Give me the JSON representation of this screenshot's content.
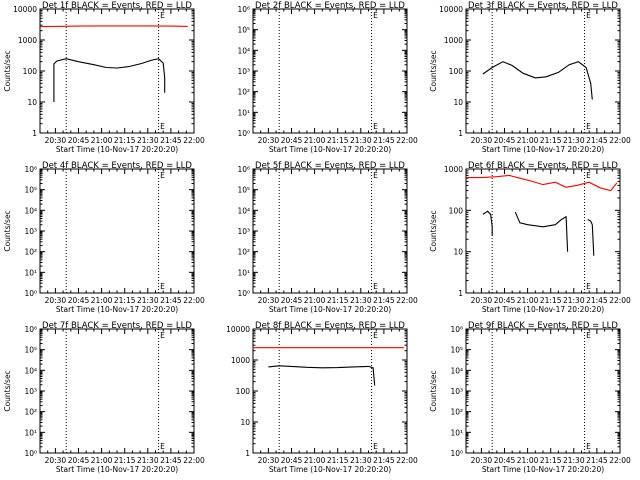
{
  "chart_data": [
    {
      "type": "line",
      "title": "Det 1f BLACK = Events, RED = LLD",
      "xlabel": "Start Time (10-Nov-17 20:20:20)",
      "ylabel": "Counts/sec",
      "yscale": "log",
      "ylim": [
        1,
        10000
      ],
      "ytick_labels": [
        "1",
        "10",
        "100",
        "1000",
        "10000"
      ],
      "xtick_labels": [
        "20:30",
        "20:45",
        "21:00",
        "21:15",
        "21:30",
        "21:45",
        "22:00"
      ],
      "vlines": [
        "20:37",
        "21:37"
      ],
      "marker": "E",
      "marker_time": "21:38",
      "series": [
        {
          "color": "#ff0000",
          "x": [
            "20:20",
            "20:30",
            "20:45",
            "21:00",
            "21:15",
            "21:30",
            "21:45",
            "21:56"
          ],
          "y": [
            2700,
            2750,
            2800,
            2850,
            2850,
            2850,
            2800,
            2750
          ]
        },
        {
          "color": "#000000",
          "x": [
            "20:29",
            "20:29",
            "20:31",
            "20:37",
            "20:45",
            "20:55",
            "21:03",
            "21:10",
            "21:18",
            "21:26",
            "21:32",
            "21:37",
            "21:40",
            "21:41",
            "21:41"
          ],
          "y": [
            10,
            170,
            210,
            250,
            200,
            160,
            130,
            125,
            140,
            175,
            220,
            250,
            180,
            60,
            20
          ]
        }
      ]
    },
    {
      "type": "line",
      "title": "Det 2f BLACK = Events, RED = LLD",
      "xlabel": "Start Time (10-Nov-17 20:20:20)",
      "ylabel": "",
      "yscale": "log",
      "ylim": [
        1,
        1000000
      ],
      "ytick_labels": [
        "10⁰",
        "10¹",
        "10²",
        "10³",
        "10⁴",
        "10⁵",
        "10⁶"
      ],
      "xtick_labels": [
        "20:30",
        "20:45",
        "21:00",
        "21:15",
        "21:30",
        "21:45",
        "22:00"
      ],
      "vlines": [
        "20:37",
        "21:37"
      ],
      "marker": "E",
      "marker_time": "21:38",
      "series": []
    },
    {
      "type": "line",
      "title": "Det 3f BLACK = Events, RED = LLD",
      "xlabel": "Start Time (10-Nov-17 20:20:20)",
      "ylabel": "Counts/sec",
      "yscale": "log",
      "ylim": [
        1,
        10000
      ],
      "ytick_labels": [
        "1",
        "10",
        "100",
        "1000",
        "10000"
      ],
      "xtick_labels": [
        "20:30",
        "20:45",
        "21:00",
        "21:15",
        "21:30",
        "21:45",
        "22:00"
      ],
      "vlines": [
        "20:37",
        "21:37"
      ],
      "marker": "E",
      "marker_time": "21:38",
      "series": [
        {
          "color": "#000000",
          "x": [
            "20:31",
            "20:37",
            "20:44",
            "20:50",
            "20:57",
            "21:05",
            "21:12",
            "21:20",
            "21:27",
            "21:33",
            "21:38",
            "21:41",
            "21:42"
          ],
          "y": [
            80,
            130,
            200,
            150,
            85,
            60,
            65,
            90,
            160,
            200,
            130,
            40,
            12
          ]
        }
      ]
    },
    {
      "type": "line",
      "title": "Det 4f BLACK = Events, RED = LLD",
      "xlabel": "Start Time (10-Nov-17 20:20:20)",
      "ylabel": "Counts/sec",
      "yscale": "log",
      "ylim": [
        1,
        1000000
      ],
      "ytick_labels": [
        "10⁰",
        "10¹",
        "10²",
        "10³",
        "10⁴",
        "10⁵",
        "10⁶"
      ],
      "xtick_labels": [
        "20:30",
        "20:45",
        "21:00",
        "21:15",
        "21:30",
        "21:45",
        "22:00"
      ],
      "vlines": [
        "20:37",
        "21:37"
      ],
      "marker": "E",
      "marker_time": "21:38",
      "series": []
    },
    {
      "type": "line",
      "title": "Det 5f BLACK = Events, RED = LLD",
      "xlabel": "Start Time (10-Nov-17 20:20:20)",
      "ylabel": "",
      "yscale": "log",
      "ylim": [
        1,
        1000000
      ],
      "ytick_labels": [
        "10⁰",
        "10¹",
        "10²",
        "10³",
        "10⁴",
        "10⁵",
        "10⁶"
      ],
      "xtick_labels": [
        "20:30",
        "20:45",
        "21:00",
        "21:15",
        "21:30",
        "21:45",
        "22:00"
      ],
      "vlines": [
        "20:37",
        "21:37"
      ],
      "marker": "E",
      "marker_time": "21:38",
      "series": []
    },
    {
      "type": "line",
      "title": "Det 6f BLACK = Events, RED = LLD",
      "xlabel": "Start Time (10-Nov-17 20:20:20)",
      "ylabel": "Counts/sec",
      "yscale": "log",
      "ylim": [
        1,
        1000
      ],
      "ytick_labels": [
        "1",
        "10",
        "100",
        "1000"
      ],
      "xtick_labels": [
        "20:30",
        "20:45",
        "21:00",
        "21:15",
        "21:30",
        "21:45",
        "22:00"
      ],
      "vlines": [
        "20:37",
        "21:37"
      ],
      "marker": "E",
      "marker_time": "21:38",
      "series": [
        {
          "color": "#ff0000",
          "x": [
            "20:20",
            "20:30",
            "20:40",
            "20:48",
            "20:55",
            "21:03",
            "21:10",
            "21:18",
            "21:25",
            "21:32",
            "21:40",
            "21:47",
            "21:54",
            "21:58"
          ],
          "y": [
            620,
            620,
            650,
            700,
            600,
            500,
            420,
            480,
            360,
            400,
            480,
            350,
            300,
            460
          ]
        },
        {
          "color": "#000000",
          "x": [
            "20:31",
            "20:34",
            "20:36",
            "20:37",
            "20:37"
          ],
          "y": [
            80,
            95,
            80,
            40,
            25
          ]
        },
        {
          "color": "#000000",
          "x": [
            "20:52",
            "20:55",
            "21:00",
            "21:10",
            "21:18",
            "21:22",
            "21:25",
            "21:26"
          ],
          "y": [
            90,
            50,
            45,
            40,
            45,
            60,
            70,
            10
          ]
        },
        {
          "color": "#000000",
          "x": [
            "21:39",
            "21:41",
            "21:42",
            "21:43"
          ],
          "y": [
            60,
            55,
            45,
            8
          ]
        }
      ]
    },
    {
      "type": "line",
      "title": "Det 7f BLACK = Events, RED = LLD",
      "xlabel": "Start Time (10-Nov-17 20:20:20)",
      "ylabel": "Counts/sec",
      "yscale": "log",
      "ylim": [
        1,
        1000000
      ],
      "ytick_labels": [
        "10⁰",
        "10¹",
        "10²",
        "10³",
        "10⁴",
        "10⁵",
        "10⁶"
      ],
      "xtick_labels": [
        "20:30",
        "20:45",
        "21:00",
        "21:15",
        "21:30",
        "21:45",
        "22:00"
      ],
      "vlines": [
        "20:37",
        "21:37"
      ],
      "marker": "E",
      "marker_time": "21:38",
      "series": []
    },
    {
      "type": "line",
      "title": "Det 8f BLACK = Events, RED = LLD",
      "xlabel": "Start Time (10-Nov-17 20:20:20)",
      "ylabel": "",
      "yscale": "log",
      "ylim": [
        1,
        10000
      ],
      "ytick_labels": [
        "1",
        "10",
        "100",
        "1000",
        "10000"
      ],
      "xtick_labels": [
        "20:30",
        "20:45",
        "21:00",
        "21:15",
        "21:30",
        "21:45",
        "22:00"
      ],
      "vlines": [
        "20:37",
        "21:37"
      ],
      "marker": "E",
      "marker_time": "21:38",
      "series": [
        {
          "color": "#ff0000",
          "x": [
            "20:20",
            "20:45",
            "21:15",
            "21:45",
            "21:58"
          ],
          "y": [
            2500,
            2500,
            2500,
            2500,
            2500
          ]
        },
        {
          "color": "#000000",
          "x": [
            "20:30",
            "20:37",
            "20:45",
            "20:55",
            "21:05",
            "21:15",
            "21:25",
            "21:35",
            "21:38",
            "21:39"
          ],
          "y": [
            600,
            650,
            620,
            580,
            560,
            570,
            600,
            620,
            560,
            150
          ]
        }
      ]
    },
    {
      "type": "line",
      "title": "Det 9f BLACK = Events, RED = LLD",
      "xlabel": "Start Time (10-Nov-17 20:20:20)",
      "ylabel": "Counts/sec",
      "yscale": "log",
      "ylim": [
        1,
        1000000
      ],
      "ytick_labels": [
        "10⁰",
        "10¹",
        "10²",
        "10³",
        "10⁴",
        "10⁵",
        "10⁶"
      ],
      "xtick_labels": [
        "20:30",
        "20:45",
        "21:00",
        "21:15",
        "21:30",
        "21:45",
        "22:00"
      ],
      "vlines": [
        "20:37",
        "21:37"
      ],
      "marker": "E",
      "marker_time": "21:38",
      "series": []
    }
  ]
}
